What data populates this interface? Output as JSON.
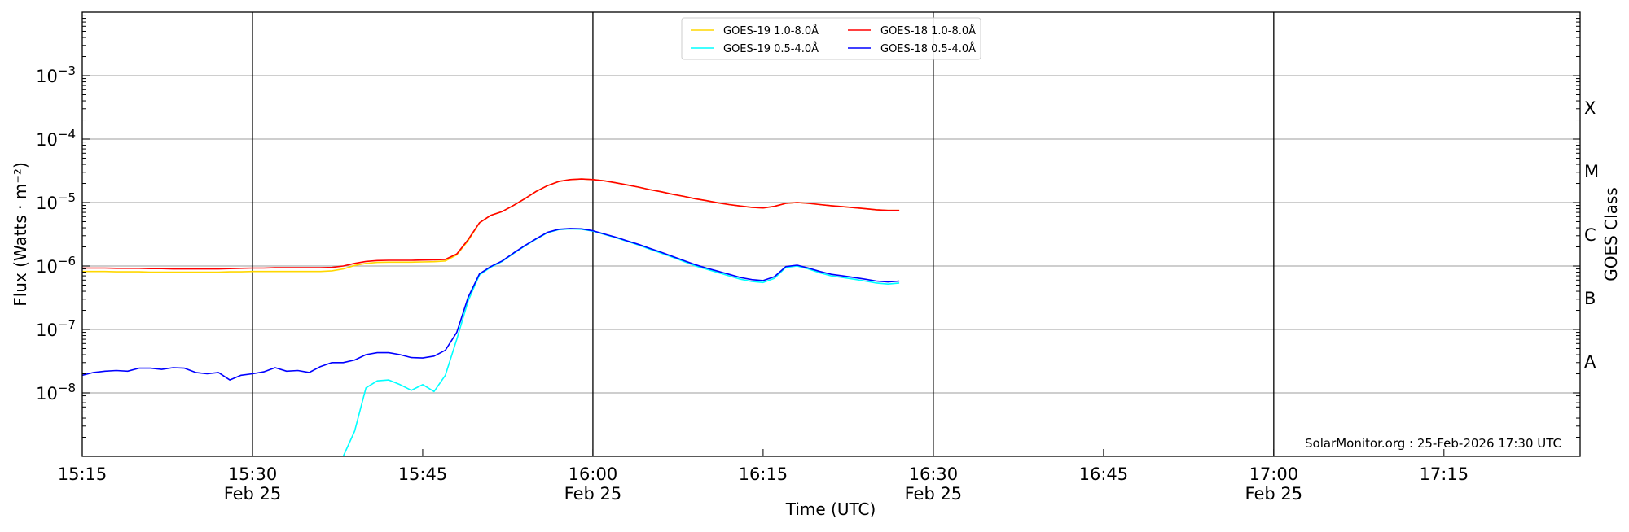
{
  "chart_data": {
    "type": "line",
    "xlabel": "Time (UTC)",
    "ylabel": "Flux (Watts · m⁻²)",
    "ylabel_right": "GOES Class",
    "yscale": "log",
    "ylim": [
      1e-09,
      0.01
    ],
    "xlim": [
      "15:15",
      "17:27"
    ],
    "grid": "horizontal at major y ticks",
    "legend_placement": "top-center",
    "annotation": "SolarMonitor.org : 25-Feb-2026 17:30 UTC",
    "y_ticks": [
      {
        "base": "10",
        "exp": "−8",
        "value": 1e-08
      },
      {
        "base": "10",
        "exp": "−7",
        "value": 1e-07
      },
      {
        "base": "10",
        "exp": "−6",
        "value": 1e-06
      },
      {
        "base": "10",
        "exp": "−5",
        "value": 1e-05
      },
      {
        "base": "10",
        "exp": "−4",
        "value": 0.0001
      },
      {
        "base": "10",
        "exp": "−3",
        "value": 0.001
      }
    ],
    "x_ticks": [
      {
        "label": "15:15",
        "date": ""
      },
      {
        "label": "15:30",
        "date": "Feb 25"
      },
      {
        "label": "15:45",
        "date": ""
      },
      {
        "label": "16:00",
        "date": "Feb 25"
      },
      {
        "label": "16:15",
        "date": ""
      },
      {
        "label": "16:30",
        "date": "Feb 25"
      },
      {
        "label": "16:45",
        "date": ""
      },
      {
        "label": "17:00",
        "date": "Feb 25"
      },
      {
        "label": "17:15",
        "date": ""
      }
    ],
    "vertical_lines": [
      "15:30",
      "16:00",
      "16:30",
      "17:00"
    ],
    "goes_classes": [
      {
        "label": "A",
        "range": [
          1e-08,
          1e-07
        ]
      },
      {
        "label": "B",
        "range": [
          1e-07,
          1e-06
        ]
      },
      {
        "label": "C",
        "range": [
          1e-06,
          1e-05
        ]
      },
      {
        "label": "M",
        "range": [
          1e-05,
          0.0001
        ]
      },
      {
        "label": "X",
        "range": [
          0.0001,
          0.001
        ]
      }
    ],
    "x": [
      "15:15",
      "15:16",
      "15:17",
      "15:18",
      "15:19",
      "15:20",
      "15:21",
      "15:22",
      "15:23",
      "15:24",
      "15:25",
      "15:26",
      "15:27",
      "15:28",
      "15:29",
      "15:30",
      "15:31",
      "15:32",
      "15:33",
      "15:34",
      "15:35",
      "15:36",
      "15:37",
      "15:38",
      "15:39",
      "15:40",
      "15:41",
      "15:42",
      "15:43",
      "15:44",
      "15:45",
      "15:46",
      "15:47",
      "15:48",
      "15:49",
      "15:50",
      "15:51",
      "15:52",
      "15:53",
      "15:54",
      "15:55",
      "15:56",
      "15:57",
      "15:58",
      "15:59",
      "16:00",
      "16:01",
      "16:02",
      "16:03",
      "16:04",
      "16:05",
      "16:06",
      "16:07",
      "16:08",
      "16:09",
      "16:10",
      "16:11",
      "16:12",
      "16:13",
      "16:14",
      "16:15",
      "16:16",
      "16:17",
      "16:18",
      "16:19",
      "16:20",
      "16:21",
      "16:22",
      "16:23",
      "16:24",
      "16:25",
      "16:26",
      "16:27"
    ],
    "series": [
      {
        "name": "GOES-19 1.0-8.0Å",
        "color": "#FFD700",
        "values": [
          8.2e-07,
          8.2e-07,
          8.2e-07,
          8.1e-07,
          8.1e-07,
          8.1e-07,
          8e-07,
          8e-07,
          8e-07,
          8e-07,
          8e-07,
          8e-07,
          8e-07,
          8.1e-07,
          8.1e-07,
          8.2e-07,
          8.2e-07,
          8.2e-07,
          8.2e-07,
          8.2e-07,
          8.2e-07,
          8.2e-07,
          8.4e-07,
          9e-07,
          1.02e-06,
          1.1e-06,
          1.14e-06,
          1.15e-06,
          1.15e-06,
          1.15e-06,
          1.16e-06,
          1.17e-06,
          1.2e-06,
          1.5e-06,
          2.5e-06,
          4.8e-06,
          6.3e-06,
          7.2e-06,
          9e-06,
          1.15e-05,
          1.5e-05,
          1.85e-05,
          2.15e-05,
          2.3e-05,
          2.35e-05,
          2.3e-05,
          2.2e-05,
          2.05e-05,
          1.9e-05,
          1.75e-05,
          1.6e-05,
          1.48e-05,
          1.35e-05,
          1.25e-05,
          1.15e-05,
          1.07e-05,
          9.9e-06,
          9.3e-06,
          8.8e-06,
          8.4e-06,
          8.2e-06,
          8.7e-06,
          9.7e-06,
          1e-05,
          9.7e-06,
          9.3e-06,
          8.9e-06,
          8.6e-06,
          8.3e-06,
          8e-06,
          7.7e-06,
          7.5e-06,
          7.5e-06
        ]
      },
      {
        "name": "GOES-18 1.0-8.0Å",
        "color": "#FF0000",
        "values": [
          9.3e-07,
          9.3e-07,
          9.3e-07,
          9.2e-07,
          9.2e-07,
          9.2e-07,
          9.1e-07,
          9.1e-07,
          9e-07,
          9e-07,
          9e-07,
          9e-07,
          9e-07,
          9.1e-07,
          9.2e-07,
          9.3e-07,
          9.3e-07,
          9.4e-07,
          9.4e-07,
          9.4e-07,
          9.4e-07,
          9.4e-07,
          9.5e-07,
          1e-06,
          1.1e-06,
          1.18e-06,
          1.22e-06,
          1.23e-06,
          1.23e-06,
          1.23e-06,
          1.24e-06,
          1.25e-06,
          1.27e-06,
          1.55e-06,
          2.6e-06,
          4.8e-06,
          6.3e-06,
          7.2e-06,
          9e-06,
          1.15e-05,
          1.5e-05,
          1.85e-05,
          2.15e-05,
          2.3e-05,
          2.35e-05,
          2.3e-05,
          2.2e-05,
          2.05e-05,
          1.9e-05,
          1.75e-05,
          1.6e-05,
          1.48e-05,
          1.35e-05,
          1.25e-05,
          1.15e-05,
          1.07e-05,
          9.9e-06,
          9.3e-06,
          8.8e-06,
          8.4e-06,
          8.2e-06,
          8.7e-06,
          9.7e-06,
          1e-05,
          9.7e-06,
          9.3e-06,
          8.9e-06,
          8.6e-06,
          8.3e-06,
          8e-06,
          7.7e-06,
          7.5e-06,
          7.5e-06
        ]
      },
      {
        "name": "GOES-19 0.5-4.0Å",
        "color": "#00FFFF",
        "values": [
          1e-09,
          1e-09,
          1e-09,
          1e-09,
          1e-09,
          1e-09,
          1e-09,
          1e-09,
          1e-09,
          1e-09,
          1e-09,
          1e-09,
          1e-09,
          1e-09,
          1e-09,
          1e-09,
          1e-09,
          1e-09,
          1e-09,
          1e-09,
          1e-09,
          1e-09,
          1e-09,
          1e-09,
          2.5e-09,
          1.2e-08,
          1.55e-08,
          1.6e-08,
          1.35e-08,
          1.1e-08,
          1.35e-08,
          1.05e-08,
          1.9e-08,
          7e-08,
          2.8e-07,
          7.2e-07,
          9.6e-07,
          1.18e-06,
          1.57e-06,
          2.07e-06,
          2.65e-06,
          3.35e-06,
          3.75e-06,
          3.85e-06,
          3.8e-06,
          3.55e-06,
          3.15e-06,
          2.8e-06,
          2.45e-06,
          2.15e-06,
          1.85e-06,
          1.6e-06,
          1.38e-06,
          1.18e-06,
          1.01e-06,
          8.9e-07,
          7.9e-07,
          7e-07,
          6.2e-07,
          5.7e-07,
          5.5e-07,
          6.4e-07,
          9.5e-07,
          1e-06,
          9e-07,
          7.8e-07,
          7e-07,
          6.6e-07,
          6.2e-07,
          5.8e-07,
          5.4e-07,
          5.2e-07,
          5.4e-07
        ]
      },
      {
        "name": "GOES-18 0.5-4.0Å",
        "color": "#0000FF",
        "values": [
          1.9e-08,
          2.1e-08,
          2.2e-08,
          2.25e-08,
          2.2e-08,
          2.45e-08,
          2.45e-08,
          2.35e-08,
          2.5e-08,
          2.45e-08,
          2.1e-08,
          2e-08,
          2.1e-08,
          1.6e-08,
          1.9e-08,
          2e-08,
          2.15e-08,
          2.5e-08,
          2.2e-08,
          2.25e-08,
          2.1e-08,
          2.6e-08,
          3e-08,
          3e-08,
          3.3e-08,
          4e-08,
          4.3e-08,
          4.3e-08,
          4e-08,
          3.6e-08,
          3.55e-08,
          3.8e-08,
          4.7e-08,
          9e-08,
          3.2e-07,
          7.5e-07,
          9.8e-07,
          1.2e-06,
          1.6e-06,
          2.1e-06,
          2.7e-06,
          3.4e-06,
          3.8e-06,
          3.9e-06,
          3.85e-06,
          3.6e-06,
          3.2e-06,
          2.85e-06,
          2.5e-06,
          2.2e-06,
          1.9e-06,
          1.65e-06,
          1.42e-06,
          1.22e-06,
          1.05e-06,
          9.3e-07,
          8.3e-07,
          7.4e-07,
          6.6e-07,
          6.1e-07,
          5.9e-07,
          6.8e-07,
          9.8e-07,
          1.03e-06,
          9.3e-07,
          8.2e-07,
          7.4e-07,
          7e-07,
          6.6e-07,
          6.2e-07,
          5.8e-07,
          5.6e-07,
          5.8e-07
        ]
      }
    ],
    "legend_order": [
      0,
      2,
      1,
      3
    ]
  }
}
